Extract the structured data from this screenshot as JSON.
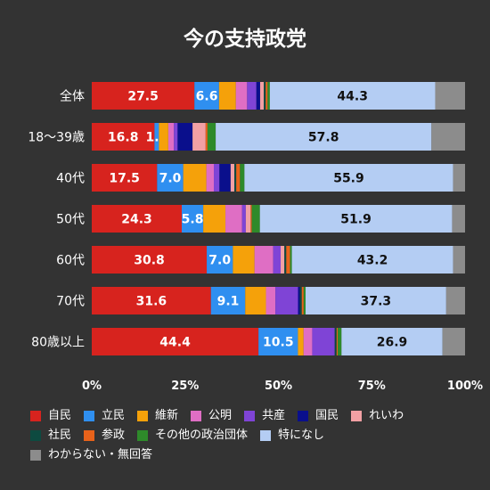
{
  "chart_data": {
    "type": "bar",
    "orientation": "horizontal",
    "stacked": true,
    "title": "今の支持政党",
    "categories": [
      "全体",
      "18〜39歳",
      "40代",
      "50代",
      "60代",
      "70代",
      "80歳以上"
    ],
    "xlim": [
      0,
      100
    ],
    "x_ticks": [
      "0%",
      "25%",
      "50%",
      "75%",
      "100%"
    ],
    "grid": false,
    "legend_position": "bottom",
    "series": [
      {
        "name": "自民",
        "color": "#d7231e",
        "values": [
          27.5,
          16.8,
          17.5,
          24.3,
          30.8,
          31.6,
          44.4
        ],
        "labels": [
          "27.5",
          "16.8",
          "17.5",
          "24.3",
          "30.8",
          "31.6",
          "44.4"
        ]
      },
      {
        "name": "立民",
        "color": "#2f8ff0",
        "values": [
          6.6,
          1.2,
          7.0,
          5.8,
          7.0,
          9.1,
          10.5
        ],
        "labels": [
          "6.6",
          "1.2",
          "7.0",
          "5.8",
          "7.0",
          "9.1",
          "10.5"
        ]
      },
      {
        "name": "維新",
        "color": "#f5a10a",
        "values": [
          4.5,
          2.5,
          6.2,
          6.0,
          5.8,
          5.5,
          1.5
        ],
        "labels": [
          "",
          "",
          "",
          "",
          "",
          "",
          ""
        ]
      },
      {
        "name": "公明",
        "color": "#df6ec4",
        "values": [
          3.0,
          1.5,
          2.0,
          4.5,
          5.0,
          2.5,
          2.3
        ],
        "labels": [
          "",
          "",
          "",
          "",
          "",
          "",
          ""
        ]
      },
      {
        "name": "共産",
        "color": "#7f44d6",
        "values": [
          2.5,
          1.0,
          1.5,
          1.0,
          2.0,
          6.0,
          6.0
        ],
        "labels": [
          "",
          "",
          "",
          "",
          "",
          "",
          ""
        ]
      },
      {
        "name": "国民",
        "color": "#0a0f8c",
        "values": [
          1.0,
          4.0,
          3.0,
          0.0,
          0.0,
          0.5,
          0.0
        ],
        "labels": [
          "",
          "",
          "",
          "",
          "",
          "",
          ""
        ]
      },
      {
        "name": "れいわ",
        "color": "#f2a0a4",
        "values": [
          1.0,
          3.5,
          1.0,
          1.3,
          1.0,
          0.0,
          0.0
        ],
        "labels": [
          "",
          "",
          "",
          "",
          "",
          "",
          ""
        ]
      },
      {
        "name": "社民",
        "color": "#0d4a40",
        "values": [
          0.5,
          0.0,
          0.5,
          0.0,
          0.5,
          0.5,
          0.5
        ],
        "labels": [
          "",
          "",
          "",
          "",
          "",
          "",
          ""
        ]
      },
      {
        "name": "参政",
        "color": "#e8621a",
        "values": [
          0.5,
          0.5,
          1.0,
          0.3,
          1.0,
          0.5,
          0.3
        ],
        "labels": [
          "",
          "",
          "",
          "",
          "",
          "",
          ""
        ]
      },
      {
        "name": "その他の政治団体",
        "color": "#2e8a2a",
        "values": [
          0.6,
          2.2,
          1.2,
          2.2,
          0.5,
          0.5,
          1.0
        ],
        "labels": [
          "",
          "",
          "",
          "",
          "",
          "",
          ""
        ]
      },
      {
        "name": "特になし",
        "color": "#b4cdf3",
        "values": [
          44.3,
          57.8,
          55.9,
          51.9,
          43.2,
          37.3,
          26.9
        ],
        "labels": [
          "44.3",
          "57.8",
          "55.9",
          "51.9",
          "43.2",
          "37.3",
          "26.9"
        ]
      },
      {
        "name": "わからない・無回答",
        "color": "#8c8c8c",
        "values": [
          8.0,
          9.0,
          3.2,
          3.5,
          3.2,
          5.0,
          6.0
        ],
        "labels": [
          "",
          "",
          "",
          "",
          "",
          "",
          ""
        ]
      }
    ]
  }
}
